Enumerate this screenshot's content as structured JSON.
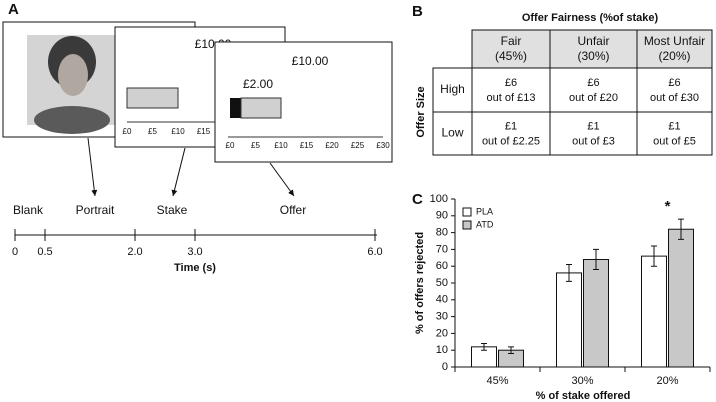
{
  "panel_a": {
    "label": "A",
    "stake_screen": {
      "amount": "£10.00",
      "scale": [
        "£0",
        "£5",
        "£10",
        "£15"
      ]
    },
    "offer_screen": {
      "amount": "£10.00",
      "offer": "£2.00",
      "scale": [
        "£0",
        "£5",
        "£10",
        "£15",
        "£20",
        "£25",
        "£30"
      ]
    },
    "events": [
      "Blank",
      "Portrait",
      "Stake",
      "Offer"
    ],
    "timeline": {
      "xlim": [
        0,
        6
      ],
      "xticks": [
        0,
        0.5,
        {
          "value": 2,
          "label": "2.0"
        },
        {
          "value": 3,
          "label": "3.0"
        },
        {
          "value": 6,
          "label": "6.0"
        }
      ],
      "xlabel": "Time (s)"
    }
  },
  "panel_b": {
    "label": "B",
    "title": "Offer Fairness (%of stake)",
    "row_axis": "Offer Size",
    "columns": [
      [
        "Fair",
        "(45%)"
      ],
      [
        "Unfair",
        "(30%)"
      ],
      [
        "Most Unfair",
        "(20%)"
      ]
    ],
    "rows": [
      {
        "label": "High",
        "cells": [
          [
            "£6",
            "out of £13"
          ],
          [
            "£6",
            "out of £20"
          ],
          [
            "£6",
            "out of £30"
          ]
        ]
      },
      {
        "label": "Low",
        "cells": [
          [
            "£1",
            "out of £2.25"
          ],
          [
            "£1",
            "out of £3"
          ],
          [
            "£1",
            "out of £5"
          ]
        ]
      }
    ]
  },
  "chart_data": {
    "type": "bar",
    "label": "C",
    "categories": [
      "45%",
      "30%",
      "20%"
    ],
    "series": [
      {
        "name": "PLA",
        "color": "#ffffff",
        "values": [
          12,
          56,
          66
        ],
        "errors": [
          2,
          5,
          6
        ]
      },
      {
        "name": "ATD",
        "color": "#c8c8c8",
        "values": [
          10,
          64,
          82
        ],
        "errors": [
          2,
          6,
          6
        ]
      }
    ],
    "ylim": [
      0,
      100
    ],
    "yticks": [
      0,
      10,
      20,
      30,
      40,
      50,
      60,
      70,
      80,
      90,
      100
    ],
    "ylabel": "% of offers rejected",
    "xlabel": "% of stake offered",
    "annotation": "*"
  }
}
